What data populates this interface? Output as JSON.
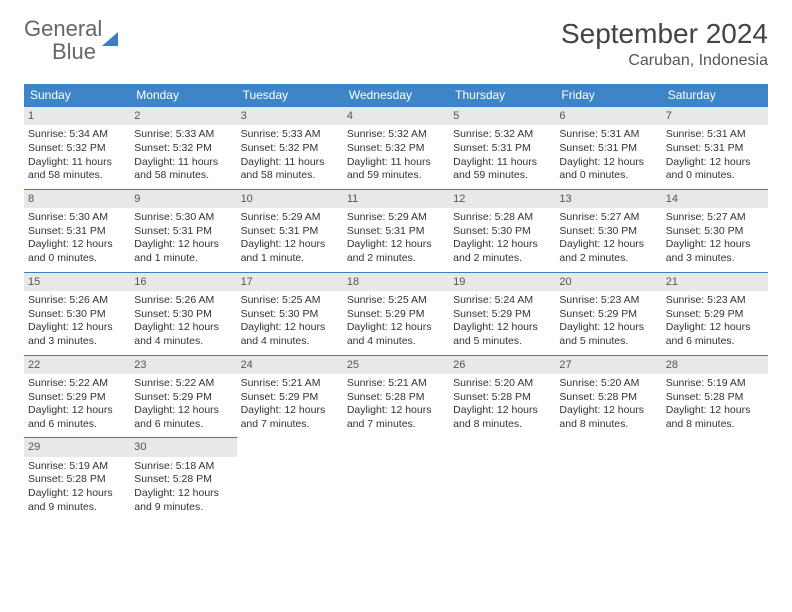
{
  "brand": {
    "word1": "General",
    "word2": "Blue"
  },
  "header": {
    "month_title": "September 2024",
    "location": "Caruban, Indonesia"
  },
  "colors": {
    "header_bg": "#3d85c6",
    "header_text": "#ffffff",
    "cell_border": "#3d7fc4",
    "daynum_bg": "#e8e8e8",
    "body_text": "#333333",
    "brand_gray": "#666666",
    "brand_blue": "#3d7fc4"
  },
  "day_names": [
    "Sunday",
    "Monday",
    "Tuesday",
    "Wednesday",
    "Thursday",
    "Friday",
    "Saturday"
  ],
  "days": [
    {
      "n": "1",
      "sunrise": "Sunrise: 5:34 AM",
      "sunset": "Sunset: 5:32 PM",
      "dl1": "Daylight: 11 hours",
      "dl2": "and 58 minutes."
    },
    {
      "n": "2",
      "sunrise": "Sunrise: 5:33 AM",
      "sunset": "Sunset: 5:32 PM",
      "dl1": "Daylight: 11 hours",
      "dl2": "and 58 minutes."
    },
    {
      "n": "3",
      "sunrise": "Sunrise: 5:33 AM",
      "sunset": "Sunset: 5:32 PM",
      "dl1": "Daylight: 11 hours",
      "dl2": "and 58 minutes."
    },
    {
      "n": "4",
      "sunrise": "Sunrise: 5:32 AM",
      "sunset": "Sunset: 5:32 PM",
      "dl1": "Daylight: 11 hours",
      "dl2": "and 59 minutes."
    },
    {
      "n": "5",
      "sunrise": "Sunrise: 5:32 AM",
      "sunset": "Sunset: 5:31 PM",
      "dl1": "Daylight: 11 hours",
      "dl2": "and 59 minutes."
    },
    {
      "n": "6",
      "sunrise": "Sunrise: 5:31 AM",
      "sunset": "Sunset: 5:31 PM",
      "dl1": "Daylight: 12 hours",
      "dl2": "and 0 minutes."
    },
    {
      "n": "7",
      "sunrise": "Sunrise: 5:31 AM",
      "sunset": "Sunset: 5:31 PM",
      "dl1": "Daylight: 12 hours",
      "dl2": "and 0 minutes."
    },
    {
      "n": "8",
      "sunrise": "Sunrise: 5:30 AM",
      "sunset": "Sunset: 5:31 PM",
      "dl1": "Daylight: 12 hours",
      "dl2": "and 0 minutes."
    },
    {
      "n": "9",
      "sunrise": "Sunrise: 5:30 AM",
      "sunset": "Sunset: 5:31 PM",
      "dl1": "Daylight: 12 hours",
      "dl2": "and 1 minute."
    },
    {
      "n": "10",
      "sunrise": "Sunrise: 5:29 AM",
      "sunset": "Sunset: 5:31 PM",
      "dl1": "Daylight: 12 hours",
      "dl2": "and 1 minute."
    },
    {
      "n": "11",
      "sunrise": "Sunrise: 5:29 AM",
      "sunset": "Sunset: 5:31 PM",
      "dl1": "Daylight: 12 hours",
      "dl2": "and 2 minutes."
    },
    {
      "n": "12",
      "sunrise": "Sunrise: 5:28 AM",
      "sunset": "Sunset: 5:30 PM",
      "dl1": "Daylight: 12 hours",
      "dl2": "and 2 minutes."
    },
    {
      "n": "13",
      "sunrise": "Sunrise: 5:27 AM",
      "sunset": "Sunset: 5:30 PM",
      "dl1": "Daylight: 12 hours",
      "dl2": "and 2 minutes."
    },
    {
      "n": "14",
      "sunrise": "Sunrise: 5:27 AM",
      "sunset": "Sunset: 5:30 PM",
      "dl1": "Daylight: 12 hours",
      "dl2": "and 3 minutes."
    },
    {
      "n": "15",
      "sunrise": "Sunrise: 5:26 AM",
      "sunset": "Sunset: 5:30 PM",
      "dl1": "Daylight: 12 hours",
      "dl2": "and 3 minutes."
    },
    {
      "n": "16",
      "sunrise": "Sunrise: 5:26 AM",
      "sunset": "Sunset: 5:30 PM",
      "dl1": "Daylight: 12 hours",
      "dl2": "and 4 minutes."
    },
    {
      "n": "17",
      "sunrise": "Sunrise: 5:25 AM",
      "sunset": "Sunset: 5:30 PM",
      "dl1": "Daylight: 12 hours",
      "dl2": "and 4 minutes."
    },
    {
      "n": "18",
      "sunrise": "Sunrise: 5:25 AM",
      "sunset": "Sunset: 5:29 PM",
      "dl1": "Daylight: 12 hours",
      "dl2": "and 4 minutes."
    },
    {
      "n": "19",
      "sunrise": "Sunrise: 5:24 AM",
      "sunset": "Sunset: 5:29 PM",
      "dl1": "Daylight: 12 hours",
      "dl2": "and 5 minutes."
    },
    {
      "n": "20",
      "sunrise": "Sunrise: 5:23 AM",
      "sunset": "Sunset: 5:29 PM",
      "dl1": "Daylight: 12 hours",
      "dl2": "and 5 minutes."
    },
    {
      "n": "21",
      "sunrise": "Sunrise: 5:23 AM",
      "sunset": "Sunset: 5:29 PM",
      "dl1": "Daylight: 12 hours",
      "dl2": "and 6 minutes."
    },
    {
      "n": "22",
      "sunrise": "Sunrise: 5:22 AM",
      "sunset": "Sunset: 5:29 PM",
      "dl1": "Daylight: 12 hours",
      "dl2": "and 6 minutes."
    },
    {
      "n": "23",
      "sunrise": "Sunrise: 5:22 AM",
      "sunset": "Sunset: 5:29 PM",
      "dl1": "Daylight: 12 hours",
      "dl2": "and 6 minutes."
    },
    {
      "n": "24",
      "sunrise": "Sunrise: 5:21 AM",
      "sunset": "Sunset: 5:29 PM",
      "dl1": "Daylight: 12 hours",
      "dl2": "and 7 minutes."
    },
    {
      "n": "25",
      "sunrise": "Sunrise: 5:21 AM",
      "sunset": "Sunset: 5:28 PM",
      "dl1": "Daylight: 12 hours",
      "dl2": "and 7 minutes."
    },
    {
      "n": "26",
      "sunrise": "Sunrise: 5:20 AM",
      "sunset": "Sunset: 5:28 PM",
      "dl1": "Daylight: 12 hours",
      "dl2": "and 8 minutes."
    },
    {
      "n": "27",
      "sunrise": "Sunrise: 5:20 AM",
      "sunset": "Sunset: 5:28 PM",
      "dl1": "Daylight: 12 hours",
      "dl2": "and 8 minutes."
    },
    {
      "n": "28",
      "sunrise": "Sunrise: 5:19 AM",
      "sunset": "Sunset: 5:28 PM",
      "dl1": "Daylight: 12 hours",
      "dl2": "and 8 minutes."
    },
    {
      "n": "29",
      "sunrise": "Sunrise: 5:19 AM",
      "sunset": "Sunset: 5:28 PM",
      "dl1": "Daylight: 12 hours",
      "dl2": "and 9 minutes."
    },
    {
      "n": "30",
      "sunrise": "Sunrise: 5:18 AM",
      "sunset": "Sunset: 5:28 PM",
      "dl1": "Daylight: 12 hours",
      "dl2": "and 9 minutes."
    }
  ],
  "trailing_empty": 5
}
